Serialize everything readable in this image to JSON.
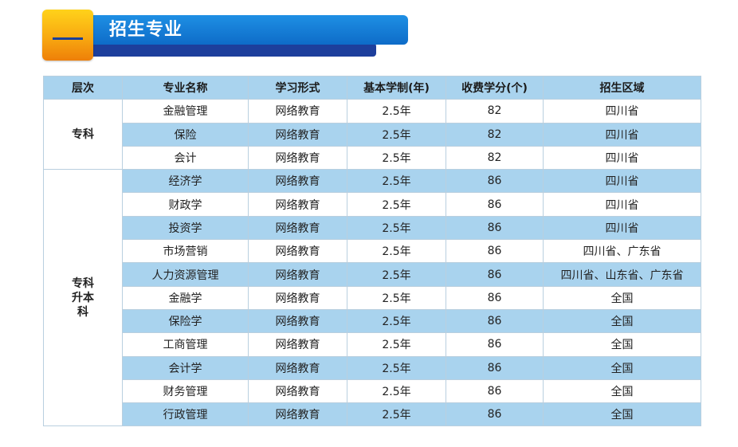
{
  "section": {
    "number": "一",
    "title": "招生专业"
  },
  "table": {
    "headers": [
      "层次",
      "专业名称",
      "学习形式",
      "基本学制(年)",
      "收费学分(个)",
      "招生区域"
    ],
    "groups": [
      {
        "level": "专科",
        "rows": [
          {
            "name": "金融管理",
            "form": "网络教育",
            "years": "2.5年",
            "credits": "82",
            "region": "四川省"
          },
          {
            "name": "保险",
            "form": "网络教育",
            "years": "2.5年",
            "credits": "82",
            "region": "四川省"
          },
          {
            "name": "会计",
            "form": "网络教育",
            "years": "2.5年",
            "credits": "82",
            "region": "四川省"
          }
        ]
      },
      {
        "level": "专科升本科",
        "rows": [
          {
            "name": "经济学",
            "form": "网络教育",
            "years": "2.5年",
            "credits": "86",
            "region": "四川省"
          },
          {
            "name": "财政学",
            "form": "网络教育",
            "years": "2.5年",
            "credits": "86",
            "region": "四川省"
          },
          {
            "name": "投资学",
            "form": "网络教育",
            "years": "2.5年",
            "credits": "86",
            "region": "四川省"
          },
          {
            "name": "市场营销",
            "form": "网络教育",
            "years": "2.5年",
            "credits": "86",
            "region": "四川省、广东省"
          },
          {
            "name": "人力资源管理",
            "form": "网络教育",
            "years": "2.5年",
            "credits": "86",
            "region": "四川省、山东省、广东省"
          },
          {
            "name": "金融学",
            "form": "网络教育",
            "years": "2.5年",
            "credits": "86",
            "region": "全国"
          },
          {
            "name": "保险学",
            "form": "网络教育",
            "years": "2.5年",
            "credits": "86",
            "region": "全国"
          },
          {
            "name": "工商管理",
            "form": "网络教育",
            "years": "2.5年",
            "credits": "86",
            "region": "全国"
          },
          {
            "name": "会计学",
            "form": "网络教育",
            "years": "2.5年",
            "credits": "86",
            "region": "全国"
          },
          {
            "name": "财务管理",
            "form": "网络教育",
            "years": "2.5年",
            "credits": "86",
            "region": "全国"
          },
          {
            "name": "行政管理",
            "form": "网络教育",
            "years": "2.5年",
            "credits": "86",
            "region": "全国"
          }
        ]
      }
    ]
  },
  "colors": {
    "header_bg": "#a9d3ee",
    "banner_blue": "#0e6cc8",
    "banner_orange": "#f8a911"
  }
}
